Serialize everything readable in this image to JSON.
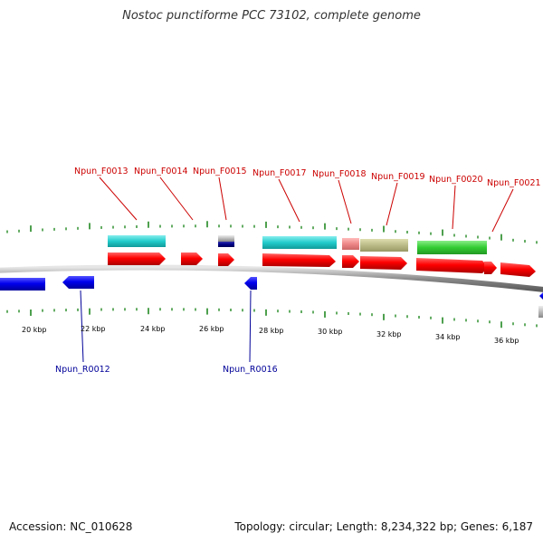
{
  "title": "Nostoc punctiforme PCC 73102, complete genome",
  "footer": {
    "accession": "Accession: NC_010628",
    "summary": "Topology: circular; Length: 8,234,322 bp; Genes: 6,187"
  },
  "colors": {
    "backbone": "#8c8c8c",
    "forward_cds": "#ff0000",
    "reverse_cds": "#0000ee",
    "tick": "#228822",
    "forward_label": "#cc0000",
    "reverse_label": "#000099",
    "cyan_feature": "#22cccc",
    "pink_feature": "#ee8888",
    "khaki_feature": "#bbbb88",
    "green_feature": "#33cc33",
    "grey_feature": "#bbbbbb",
    "navy_feature": "#000088"
  },
  "scale_labels": [
    "20 kbp",
    "22 kbp",
    "24 kbp",
    "26 kbp",
    "28 kbp",
    "30 kbp",
    "32 kbp",
    "34 kbp",
    "36 kbp"
  ],
  "forward_labels": [
    "Npun_F0013",
    "Npun_F0014",
    "Npun_F0015",
    "Npun_F0017",
    "Npun_F0018",
    "Npun_F0019",
    "Npun_F0020",
    "Npun_F0021"
  ],
  "reverse_labels": [
    "Npun_R0012",
    "Npun_R0016"
  ]
}
